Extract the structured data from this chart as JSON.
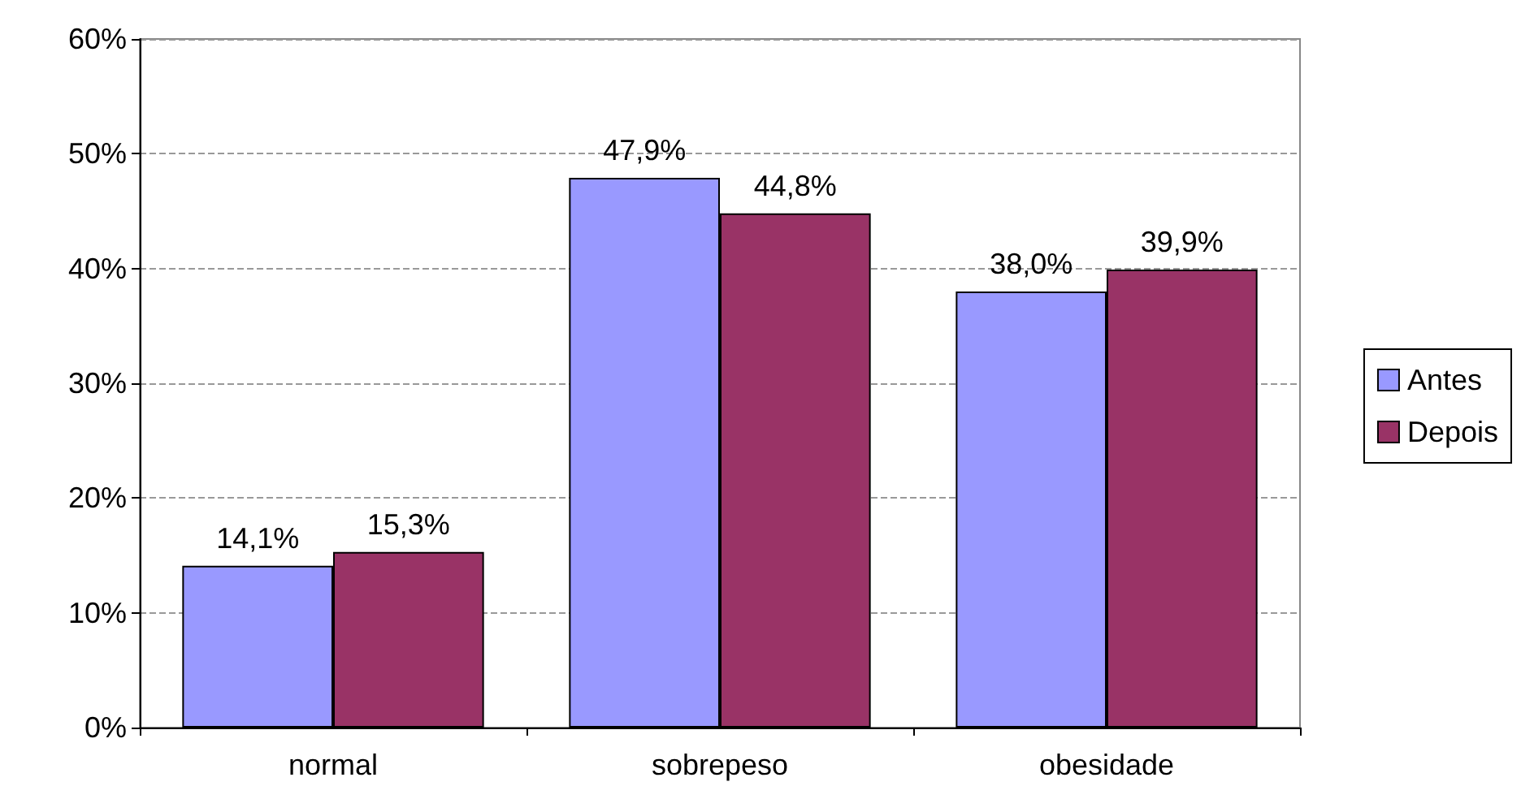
{
  "chart_data": {
    "type": "bar",
    "categories": [
      "normal",
      "sobrepeso",
      "obesidade"
    ],
    "series": [
      {
        "name": "Antes",
        "color": "#9999ff",
        "values": [
          14.1,
          47.9,
          38.0
        ],
        "value_labels": [
          "14,1%",
          "47,9%",
          "38,0%"
        ]
      },
      {
        "name": "Depois",
        "color": "#993366",
        "values": [
          15.3,
          44.8,
          39.9
        ],
        "value_labels": [
          "15,3%",
          "44,8%",
          "39,9%"
        ]
      }
    ],
    "ylim": [
      0,
      60
    ],
    "yticks": [
      {
        "value": 0,
        "label": "0%"
      },
      {
        "value": 10,
        "label": "10%"
      },
      {
        "value": 20,
        "label": "20%"
      },
      {
        "value": 30,
        "label": "30%"
      },
      {
        "value": 40,
        "label": "40%"
      },
      {
        "value": 50,
        "label": "50%"
      },
      {
        "value": 60,
        "label": "60%"
      }
    ],
    "grid": "y",
    "legend": "right"
  }
}
